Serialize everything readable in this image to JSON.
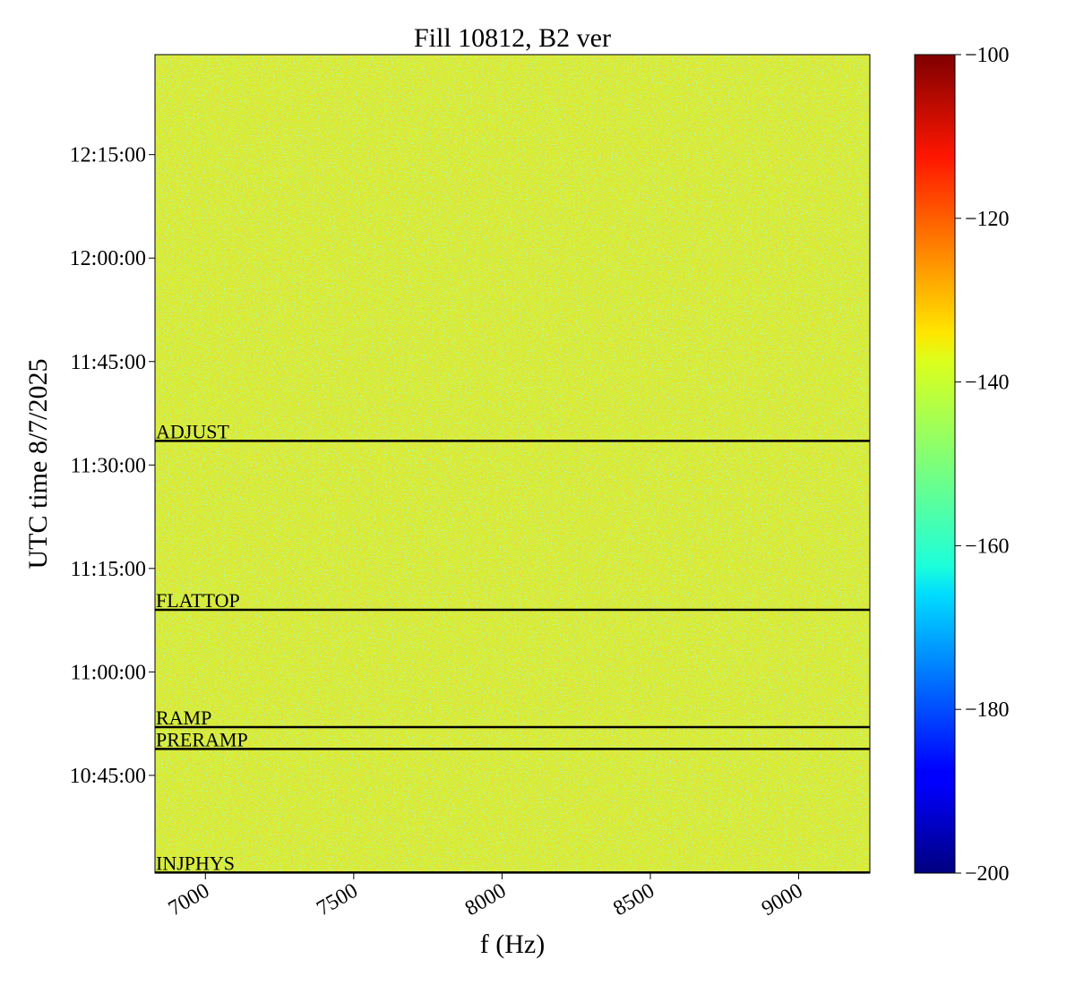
{
  "chart_data": {
    "type": "spectrogram",
    "title": "Fill 10812, B2 ver",
    "xlabel": "f (Hz)",
    "ylabel": "UTC time 8/7/2025",
    "xlim": [
      6830,
      9240
    ],
    "xticks": [
      7000,
      7500,
      8000,
      8500,
      9000
    ],
    "ylim": [
      "10:30:50",
      "12:29:30"
    ],
    "yticks": [
      "10:45:00",
      "11:00:00",
      "11:15:00",
      "11:30:00",
      "11:45:00",
      "12:00:00",
      "12:15:00"
    ],
    "events": [
      {
        "label": "INJPHYS",
        "time": "10:30:55"
      },
      {
        "label": "PRERAMP",
        "time": "10:48:50"
      },
      {
        "label": "RAMP",
        "time": "10:52:00"
      },
      {
        "label": "FLATTOP",
        "time": "11:09:00"
      },
      {
        "label": "ADJUST",
        "time": "11:33:30"
      }
    ],
    "event_color": "#000000",
    "colormap": "jet",
    "clim": [
      -200,
      -100
    ],
    "cticks": [
      {
        "value": -200,
        "label": "−200"
      },
      {
        "value": -180,
        "label": "−180"
      },
      {
        "value": -160,
        "label": "−160"
      },
      {
        "value": -140,
        "label": "−140"
      },
      {
        "value": -120,
        "label": "−120"
      },
      {
        "value": -100,
        "label": "−100"
      }
    ]
  }
}
